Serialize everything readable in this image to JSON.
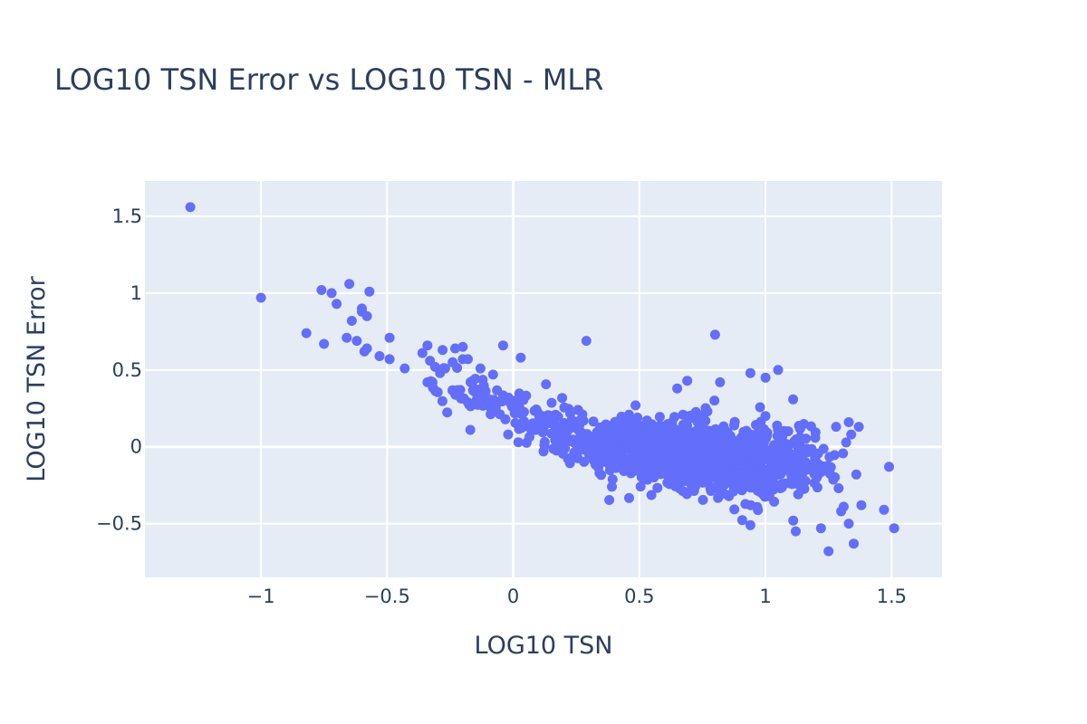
{
  "chart_data": {
    "type": "scatter",
    "title": "LOG10 TSN Error vs LOG10 TSN - MLR",
    "xlabel": "LOG10 TSN",
    "ylabel": "LOG10 TSN Error",
    "xlim": [
      -1.46,
      1.7
    ],
    "ylim": [
      -0.85,
      1.73
    ],
    "x_ticks": [
      {
        "value": -1,
        "label": "−1"
      },
      {
        "value": -0.5,
        "label": "−0.5"
      },
      {
        "value": 0,
        "label": "0"
      },
      {
        "value": 0.5,
        "label": "0.5"
      },
      {
        "value": 1,
        "label": "1"
      },
      {
        "value": 1.5,
        "label": "1.5"
      }
    ],
    "y_ticks": [
      {
        "value": -0.5,
        "label": "−0.5"
      },
      {
        "value": 0,
        "label": "0"
      },
      {
        "value": 0.5,
        "label": "0.5"
      },
      {
        "value": 1,
        "label": "1"
      },
      {
        "value": 1.5,
        "label": "1.5"
      }
    ],
    "grid": true,
    "legend": "none",
    "colors": {
      "marker": "#636efa",
      "plot_background": "#e5ecf6",
      "grid": "#ffffff",
      "text": "#2a3f5f"
    },
    "series": [
      {
        "points": [
          [
            -1.28,
            1.56
          ],
          [
            -1.0,
            0.97
          ],
          [
            -0.82,
            0.74
          ],
          [
            -0.76,
            1.02
          ],
          [
            -0.75,
            0.67
          ],
          [
            -0.72,
            1.0
          ],
          [
            -0.7,
            0.93
          ],
          [
            -0.66,
            0.71
          ],
          [
            -0.65,
            1.06
          ],
          [
            -0.64,
            0.82
          ],
          [
            -0.62,
            0.69
          ],
          [
            -0.6,
            0.88
          ],
          [
            -0.6,
            0.9
          ],
          [
            -0.59,
            0.62
          ],
          [
            -0.58,
            0.85
          ],
          [
            -0.58,
            0.64
          ],
          [
            -0.57,
            1.01
          ],
          [
            -0.53,
            0.59
          ],
          [
            -0.49,
            0.71
          ],
          [
            -0.49,
            0.57
          ],
          [
            -0.43,
            0.51
          ],
          [
            -0.36,
            0.61
          ],
          [
            -0.34,
            0.66
          ],
          [
            -0.33,
            0.56
          ],
          [
            -0.34,
            0.42
          ],
          [
            -0.32,
            0.42
          ],
          [
            -0.31,
            0.52
          ],
          [
            -0.29,
            0.48
          ],
          [
            -0.28,
            0.63
          ],
          [
            -0.27,
            0.51
          ],
          [
            -0.24,
            0.55
          ],
          [
            -0.23,
            0.64
          ],
          [
            -0.2,
            0.65
          ],
          [
            -0.2,
            0.57
          ],
          [
            -0.18,
            0.57
          ],
          [
            -0.21,
            0.37
          ],
          [
            -0.18,
            0.29
          ],
          [
            -0.16,
            0.43
          ],
          [
            -0.17,
            0.11
          ],
          [
            -0.13,
            0.51
          ],
          [
            -0.08,
            0.47
          ],
          [
            -0.04,
            0.66
          ],
          [
            0.03,
            0.58
          ],
          [
            -0.02,
            0.08
          ],
          [
            0.29,
            0.69
          ],
          [
            0.8,
            0.73
          ],
          [
            0.12,
            -0.03
          ]
        ],
        "clusters": [
          {
            "cx": -0.12,
            "cy": 0.33,
            "sx": 0.1,
            "sy": 0.06,
            "n": 40
          },
          {
            "cx": 0.05,
            "cy": 0.22,
            "sx": 0.07,
            "sy": 0.07,
            "n": 40
          },
          {
            "cx": 0.2,
            "cy": 0.1,
            "sx": 0.08,
            "sy": 0.08,
            "n": 70
          },
          {
            "cx": 0.45,
            "cy": 0.0,
            "sx": 0.12,
            "sy": 0.09,
            "n": 300
          },
          {
            "cx": 0.7,
            "cy": -0.04,
            "sx": 0.14,
            "sy": 0.11,
            "n": 420
          },
          {
            "cx": 0.95,
            "cy": -0.1,
            "sx": 0.12,
            "sy": 0.12,
            "n": 300
          },
          {
            "cx": 1.15,
            "cy": -0.15,
            "sx": 0.07,
            "sy": 0.11,
            "n": 60
          }
        ],
        "outliers_right": [
          [
            1.25,
            -0.68
          ],
          [
            1.35,
            -0.63
          ],
          [
            1.33,
            -0.5
          ],
          [
            1.22,
            -0.53
          ],
          [
            1.51,
            -0.53
          ],
          [
            1.47,
            -0.41
          ],
          [
            1.49,
            -0.13
          ],
          [
            1.38,
            -0.38
          ],
          [
            1.34,
            0.08
          ],
          [
            1.37,
            0.13
          ],
          [
            1.33,
            0.16
          ],
          [
            1.28,
            0.13
          ],
          [
            1.12,
            -0.55
          ],
          [
            1.11,
            -0.48
          ],
          [
            0.94,
            -0.51
          ],
          [
            1.3,
            -0.42
          ],
          [
            1.31,
            -0.39
          ],
          [
            1.36,
            -0.18
          ],
          [
            1.29,
            -0.27
          ],
          [
            0.94,
            0.48
          ],
          [
            1.0,
            0.45
          ],
          [
            1.05,
            0.5
          ],
          [
            0.82,
            0.42
          ],
          [
            0.69,
            0.43
          ],
          [
            0.65,
            0.38
          ]
        ]
      }
    ]
  }
}
